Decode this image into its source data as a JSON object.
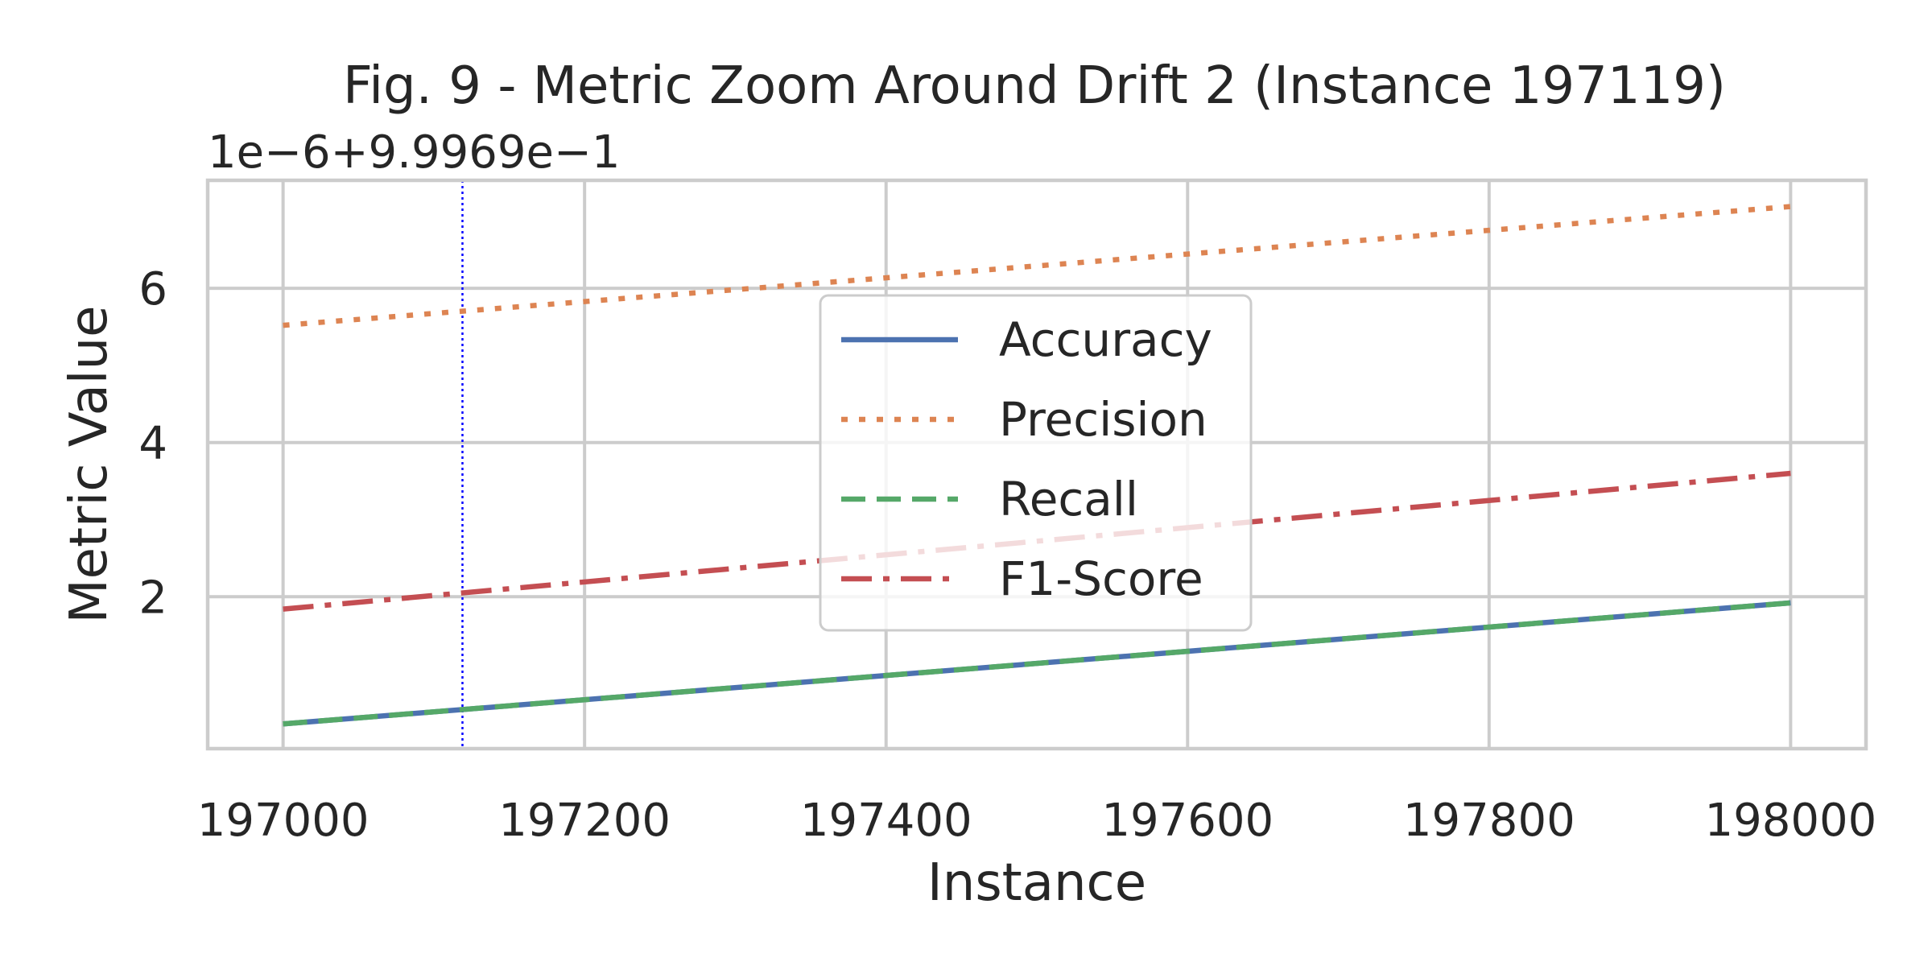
{
  "chart_data": {
    "type": "line",
    "title": "Fig. 9 - Metric Zoom Around Drift 2 (Instance 197119)",
    "xlabel": "Instance",
    "ylabel": "Metric Value",
    "y_offset_text": "1e−6+9.9969e−1",
    "xlim": [
      196950,
      198050
    ],
    "ylim": [
      0.03,
      7.4
    ],
    "y_units_note": "",
    "x_ticks": [
      197000,
      197200,
      197400,
      197600,
      197800,
      198000
    ],
    "x_tick_labels": [
      "197000",
      "197200",
      "197400",
      "197600",
      "197800",
      "198000"
    ],
    "y_ticks": [
      2,
      4,
      6
    ],
    "y_tick_labels": [
      "2",
      "4",
      "6"
    ],
    "grid": true,
    "legend_position": "center",
    "drift_line": {
      "x": 197119,
      "color": "#0000ff",
      "style": "dotted"
    },
    "series": [
      {
        "name": "Accuracy",
        "x": [
          197000,
          198000
        ],
        "y": [
          0.35,
          1.92
        ],
        "color": "#4c72b0",
        "dash": "solid"
      },
      {
        "name": "Precision",
        "x": [
          197000,
          198000
        ],
        "y": [
          5.52,
          7.06
        ],
        "color": "#dd8452",
        "dash": "dotted"
      },
      {
        "name": "Recall",
        "x": [
          197000,
          198000
        ],
        "y": [
          0.35,
          1.92
        ],
        "color": "#55a868",
        "dash": "dashed"
      },
      {
        "name": "F1-Score",
        "x": [
          197000,
          198000
        ],
        "y": [
          1.84,
          3.6
        ],
        "color": "#c44e52",
        "dash": "dashdot"
      }
    ]
  }
}
